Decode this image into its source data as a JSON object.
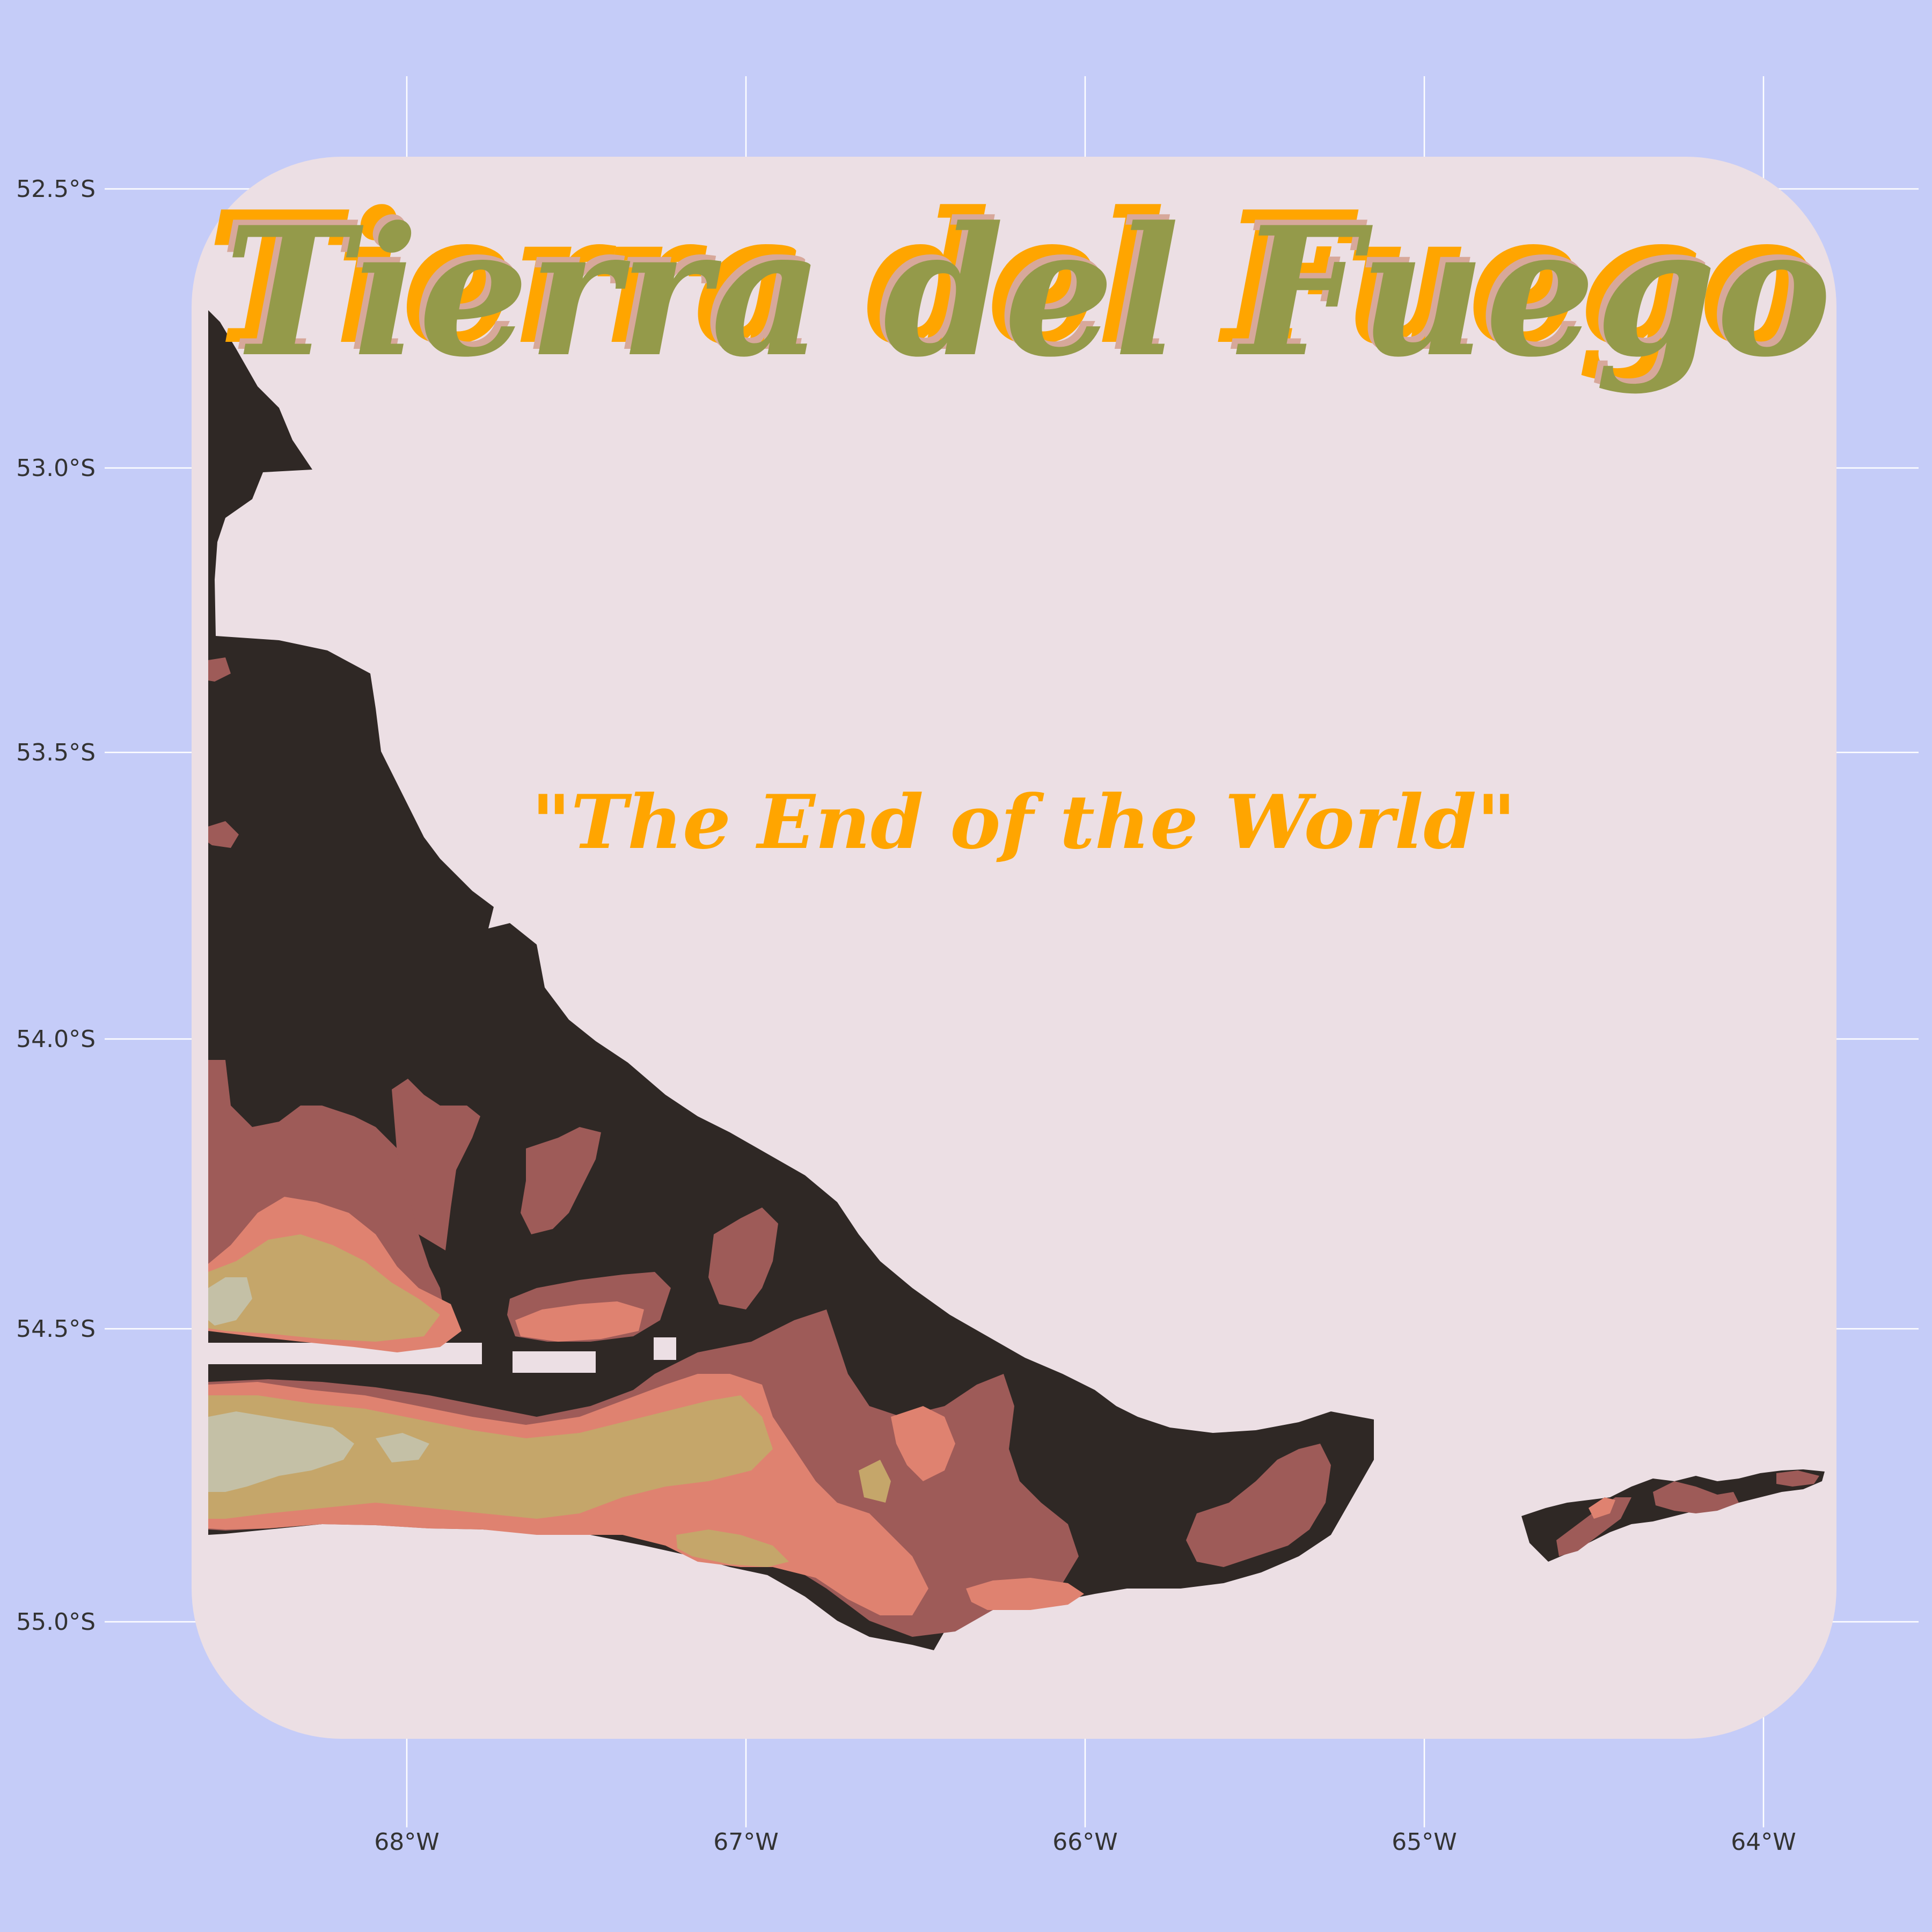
{
  "title": "Tierra del Fuego",
  "subtitle": "\"The End of the World\"",
  "colors": {
    "background": "#c5ccf8",
    "panel": "#ecdfe4",
    "gridline": "#ffffff",
    "land_low": "#2f2825",
    "elev_1": "#9e5b58",
    "elev_2": "#df8270",
    "elev_3": "#c5a66a",
    "elev_4": "#c4c0a6",
    "title_fill": "#949a4a",
    "title_shadow": "#d7a89a",
    "title_outline": "#ffa500",
    "subtitle": "#ffa500"
  },
  "axes": {
    "x_ticks": [
      "68°W",
      "67°W",
      "66°W",
      "65°W",
      "64°W"
    ],
    "y_ticks": [
      "52.5°S",
      "53.0°S",
      "53.5°S",
      "54.0°S",
      "54.5°S",
      "55.0°S"
    ]
  },
  "map": {
    "region": "Tierra del Fuego",
    "lon_range": [
      -68.6,
      -63.8
    ],
    "lat_range": [
      -55.2,
      -52.5
    ],
    "layers": [
      "coastline",
      "elevation contours"
    ]
  }
}
